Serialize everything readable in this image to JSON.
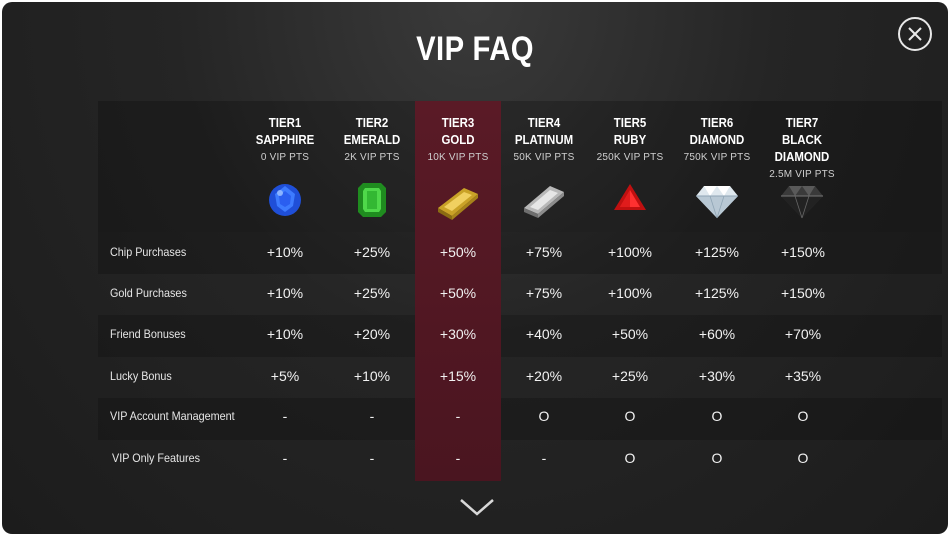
{
  "title": "VIP FAQ",
  "tiers": [
    {
      "line1": "TIER1",
      "line2": "SAPPHIRE",
      "pts": "0  VIP PTS",
      "gem": "sapphire"
    },
    {
      "line1": "TIER2",
      "line2": "EMERALD",
      "pts": "2K VIP PTS",
      "gem": "emerald"
    },
    {
      "line1": "TIER3",
      "line2": "GOLD",
      "pts": "10K VIP PTS",
      "gem": "gold-bar"
    },
    {
      "line1": "TIER4",
      "line2": "PLATINUM",
      "pts": "50K VIP PTS",
      "gem": "platinum-bar"
    },
    {
      "line1": "TIER5",
      "line2": "RUBY",
      "pts": "250K VIP PTS",
      "gem": "ruby"
    },
    {
      "line1": "TIER6",
      "line2": "DIAMOND",
      "pts": "750K VIP PTS",
      "gem": "diamond"
    },
    {
      "line1": "TIER7",
      "line2": "BLACK DIAMOND",
      "pts": "2.5M VIP PTS",
      "gem": "black-diamond"
    }
  ],
  "rows": [
    {
      "label": "Chip Purchases",
      "values": [
        "+10%",
        "+25%",
        "+50%",
        "+75%",
        "+100%",
        "+125%",
        "+150%"
      ]
    },
    {
      "label": "Gold Purchases",
      "values": [
        "+10%",
        "+25%",
        "+50%",
        "+75%",
        "+100%",
        "+125%",
        "+150%"
      ]
    },
    {
      "label": "Friend Bonuses",
      "values": [
        "+10%",
        "+20%",
        "+30%",
        "+40%",
        "+50%",
        "+60%",
        "+70%"
      ]
    },
    {
      "label": "Lucky Bonus",
      "values": [
        "+5%",
        "+10%",
        "+15%",
        "+20%",
        "+25%",
        "+30%",
        "+35%"
      ]
    },
    {
      "label": "VIP Account Management",
      "values": [
        "-",
        "-",
        "-",
        "O",
        "O",
        "O",
        "O"
      ]
    },
    {
      "label": "VIP Only Features",
      "values": [
        "-",
        "-",
        "-",
        "-",
        "O",
        "O",
        "O"
      ]
    }
  ],
  "icons": {
    "close": "close-icon",
    "scroll": "chevron-down-icon"
  },
  "colors": {
    "highlight_column": "#4e1722",
    "background": "#222222"
  }
}
